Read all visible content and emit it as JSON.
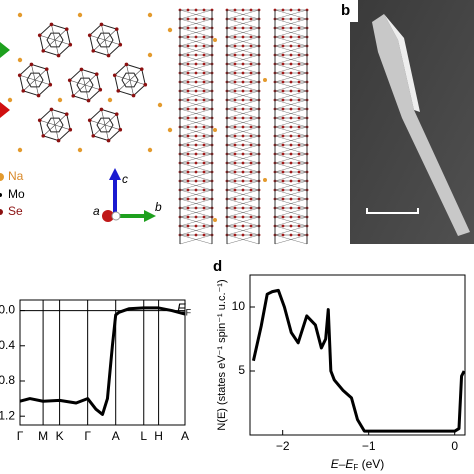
{
  "structure": {
    "legend": [
      "Na",
      "Mo",
      "Se"
    ],
    "axes": [
      "a",
      "b",
      "c"
    ]
  },
  "sem": {
    "label": "b"
  },
  "chart_data": [
    {
      "type": "line",
      "ylim": [
        -1.3,
        0.12
      ],
      "xlim": [
        0,
        5
      ],
      "yticks": [
        {
          "value": 0,
          "label": "0.0"
        },
        {
          "value": -0.4,
          "label": "0.4"
        },
        {
          "value": -0.8,
          "label": "0.8"
        },
        {
          "value": -1.2,
          "label": "1.2"
        }
      ],
      "xticks": [
        {
          "value": 0,
          "label": "Γ"
        },
        {
          "value": 0.7,
          "label": "M"
        },
        {
          "value": 1.2,
          "label": "K"
        },
        {
          "value": 2.05,
          "label": "Γ"
        },
        {
          "value": 2.9,
          "label": "A"
        },
        {
          "value": 3.75,
          "label": "L"
        },
        {
          "value": 4.2,
          "label": "H"
        },
        {
          "value": 5,
          "label": "A"
        }
      ],
      "xgrid": true,
      "fermi_label": [
        "E",
        "F"
      ],
      "color": "#000000",
      "x": [
        0,
        0.3,
        0.7,
        1.2,
        1.7,
        2.05,
        2.3,
        2.5,
        2.65,
        2.8,
        2.9,
        3.0,
        3.3,
        3.75,
        4.2,
        4.6,
        5
      ],
      "values": [
        -1.03,
        -1.0,
        -1.03,
        -1.02,
        -1.05,
        -1.0,
        -1.12,
        -1.18,
        -1.0,
        -0.4,
        -0.05,
        -0.02,
        0.02,
        0.03,
        0.03,
        0.0,
        -0.04
      ]
    },
    {
      "type": "line",
      "label": "d",
      "ylim": [
        0,
        12.5
      ],
      "xlim": [
        -2.38,
        0.12
      ],
      "yticks": [
        5,
        10
      ],
      "xticks": [
        {
          "value": -2,
          "label": "−2"
        },
        {
          "value": -1,
          "label": "−1"
        },
        {
          "value": 0,
          "label": "0"
        }
      ],
      "xgrid": false,
      "y_label": "N(E) (states eV⁻¹ spin⁻¹ u.c.⁻¹)",
      "x_label": [
        "E–E",
        "F",
        " (eV)"
      ],
      "color": "#000000",
      "x": [
        -2.34,
        -2.25,
        -2.18,
        -2.12,
        -2.05,
        -1.98,
        -1.9,
        -1.82,
        -1.72,
        -1.62,
        -1.55,
        -1.5,
        -1.47,
        -1.44,
        -1.4,
        -1.3,
        -1.2,
        -1.13,
        -1.05,
        -0.5,
        0,
        0.05,
        0.08,
        0.11
      ],
      "values": [
        5.8,
        8.5,
        11,
        11.2,
        11.3,
        10,
        8,
        7.2,
        9.3,
        8.6,
        6.8,
        7.5,
        9.8,
        5,
        4.3,
        3.5,
        2.9,
        1.2,
        0.3,
        0.3,
        0.3,
        0.5,
        4.6,
        5
      ]
    }
  ]
}
